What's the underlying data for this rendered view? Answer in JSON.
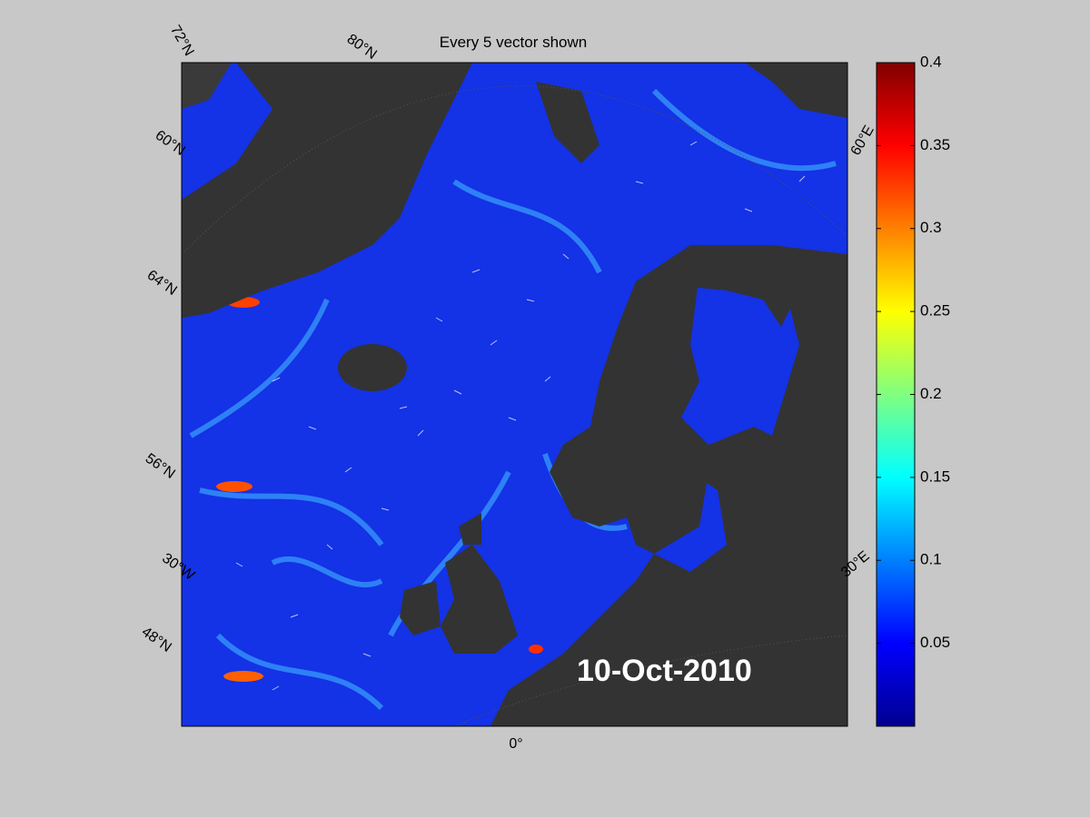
{
  "title": "Every 5 vector shown",
  "date_label": "10-Oct-2010",
  "graticule_labels": [
    "72°N",
    "80°N",
    "60°N",
    "64°N",
    "56°N",
    "30°W",
    "48°N",
    "0°",
    "30°E",
    "60°E"
  ],
  "colorbar": {
    "lim": [
      0,
      0.4
    ],
    "ticks": [
      0.05,
      0.1,
      0.15,
      0.2,
      0.25,
      0.3,
      0.35,
      0.4
    ]
  }
}
